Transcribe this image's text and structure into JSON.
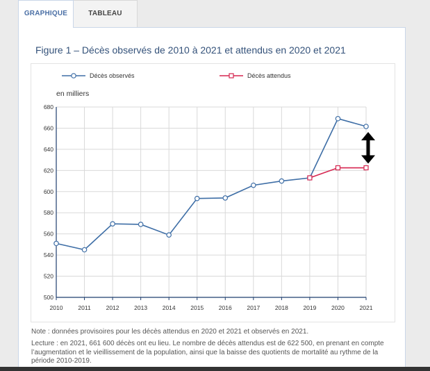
{
  "tabs": [
    {
      "label": "GRAPHIQUE",
      "active": true
    },
    {
      "label": "TABLEAU",
      "active": false
    }
  ],
  "figure": {
    "title": "Figure 1 – Décès observés de 2010 à 2021 et attendus en 2020 et 2021"
  },
  "chart_data": {
    "type": "line",
    "title": "Figure 1 – Décès observés de 2010 à 2021 et attendus en 2020 et 2021",
    "xlabel": "",
    "ylabel": "en milliers",
    "x": [
      "2010",
      "2011",
      "2012",
      "2013",
      "2014",
      "2015",
      "2016",
      "2017",
      "2018",
      "2019",
      "2020",
      "2021"
    ],
    "ylim": [
      500,
      680
    ],
    "yticks": [
      500,
      520,
      540,
      560,
      580,
      600,
      620,
      640,
      660,
      680
    ],
    "grid": true,
    "legend_position": "top",
    "series": [
      {
        "name": "Décès observés",
        "color": "#3e6ea6",
        "marker": "circle",
        "x": [
          "2010",
          "2011",
          "2012",
          "2013",
          "2014",
          "2015",
          "2016",
          "2017",
          "2018",
          "2019",
          "2020",
          "2021"
        ],
        "values": [
          551,
          545,
          569.5,
          569,
          559,
          593.5,
          594,
          606,
          610,
          613,
          669,
          661.6
        ]
      },
      {
        "name": "Décès attendus",
        "color": "#d6254f",
        "marker": "square",
        "x": [
          "2019",
          "2020",
          "2021"
        ],
        "values": [
          613,
          622.5,
          622.5
        ]
      }
    ],
    "annotations": [
      {
        "type": "double-arrow",
        "x": "2021",
        "from": 622.5,
        "to": 661.6,
        "color": "#000000"
      }
    ]
  },
  "notes": {
    "note": "Note : données provisoires pour les décès attendus en 2020 et 2021 et observés en 2021.",
    "lecture": "Lecture : en 2021, 661 600 décès ont eu lieu. Le nombre de décès attendus est de 622 500, en prenant en compte l’augmentation et le vieillissement de la population, ainsi que la baisse des quotients de mortalité au rythme de la période 2010-2019."
  }
}
